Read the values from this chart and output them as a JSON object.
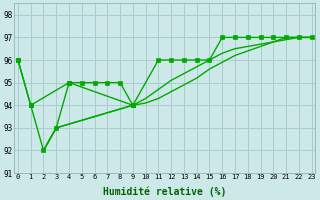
{
  "bg_color": "#cce8e8",
  "grid_color": "#aacccc",
  "line_color": "#00aa00",
  "xlabel": "Humidité relative (%)",
  "ylabel_ticks": [
    91,
    92,
    93,
    94,
    95,
    96,
    97,
    98
  ],
  "ylim": [
    91,
    98.5
  ],
  "xlim": [
    -0.3,
    23.3
  ],
  "xticks": [
    0,
    1,
    2,
    3,
    4,
    5,
    6,
    7,
    8,
    9,
    10,
    11,
    12,
    13,
    14,
    15,
    16,
    17,
    18,
    19,
    20,
    21,
    22,
    23
  ],
  "line_A_x": [
    0,
    1,
    4,
    5,
    6,
    7,
    8,
    9,
    11,
    12,
    13,
    14,
    15,
    16,
    17,
    18,
    19,
    20,
    21,
    22,
    23
  ],
  "line_A_y": [
    96,
    94,
    95,
    95,
    95,
    95,
    95,
    94,
    96,
    96,
    96,
    96,
    96,
    97,
    97,
    97,
    97,
    97,
    97,
    97,
    97
  ],
  "line_B_x": [
    0,
    1,
    2,
    3,
    4,
    9
  ],
  "line_B_y": [
    96,
    94,
    92,
    93,
    95,
    94
  ],
  "line_C_x": [
    2,
    3,
    9,
    10,
    11,
    12,
    13,
    14,
    15,
    16,
    17,
    18,
    19,
    20,
    21,
    22,
    23
  ],
  "line_C_y": [
    92,
    93,
    94,
    94.3,
    94.7,
    95.1,
    95.4,
    95.7,
    96.0,
    96.3,
    96.5,
    96.6,
    96.7,
    96.8,
    96.9,
    97.0,
    97.0
  ],
  "line_D_x": [
    2,
    3,
    9,
    10,
    11,
    12,
    13,
    14,
    15,
    16,
    17,
    18,
    19,
    20,
    21,
    22,
    23
  ],
  "line_D_y": [
    92,
    93,
    94,
    94.1,
    94.3,
    94.6,
    94.9,
    95.2,
    95.6,
    95.9,
    96.2,
    96.4,
    96.6,
    96.8,
    97.0,
    97.0,
    97.0
  ]
}
